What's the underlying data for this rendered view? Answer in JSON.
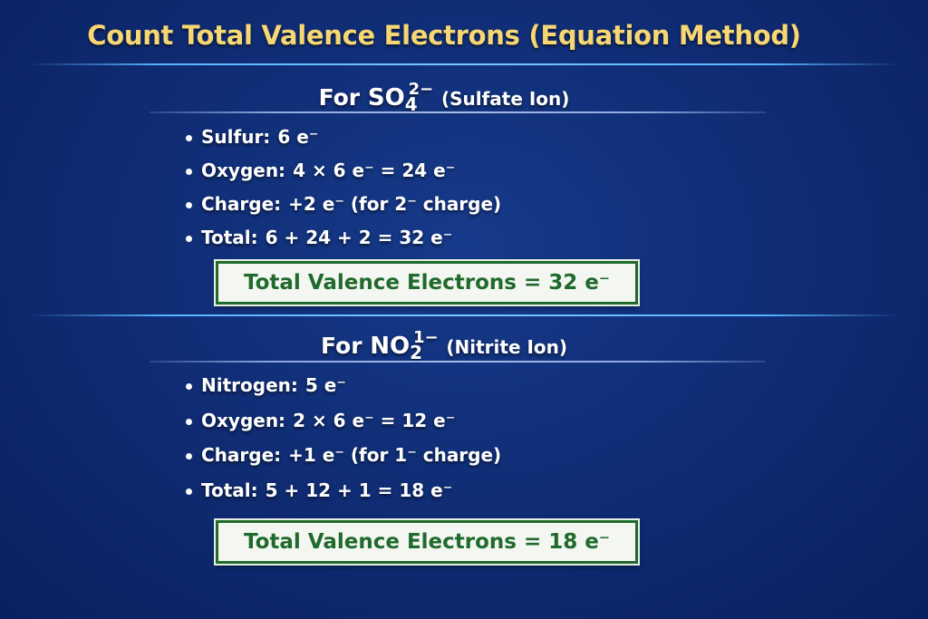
{
  "title": "Count Total Valence Electrons (Equation Method)",
  "sections": [
    {
      "heading_prefix": "For",
      "formula_main": "SO",
      "formula_sub": "4",
      "formula_sup": "2−",
      "heading_name": "(Sulfate Ion)",
      "bullets": [
        {
          "label": "Sulfur:",
          "value": "6 e⁻"
        },
        {
          "label": "Oxygen:",
          "value": "4 × 6 e⁻ = 24 e⁻"
        },
        {
          "label": "Charge:",
          "value": "+2 e⁻ (for 2⁻ charge)"
        },
        {
          "label": "Total:",
          "value": "6 + 24 + 2 = 32 e⁻"
        }
      ],
      "result": "Total Valence Electrons = 32 e⁻"
    },
    {
      "heading_prefix": "For",
      "formula_main": "NO",
      "formula_sub": "2",
      "formula_sup": "1−",
      "heading_name": "(Nitrite Ion)",
      "bullets": [
        {
          "label": "Nitrogen:",
          "value": "5 e⁻"
        },
        {
          "label": "Oxygen:",
          "value": "2 × 6 e⁻ = 12 e⁻"
        },
        {
          "label": "Charge:",
          "value": "+1 e⁻ (for 1⁻ charge)"
        },
        {
          "label": "Total:",
          "value": "5 + 12 + 1 = 18 e⁻"
        }
      ],
      "result": "Total Valence Electrons = 18 e⁻"
    }
  ],
  "colors": {
    "title": "#f6d773",
    "background": "#0f2b72",
    "result_text": "#1f6a2c",
    "divider": "#56b4ff"
  }
}
